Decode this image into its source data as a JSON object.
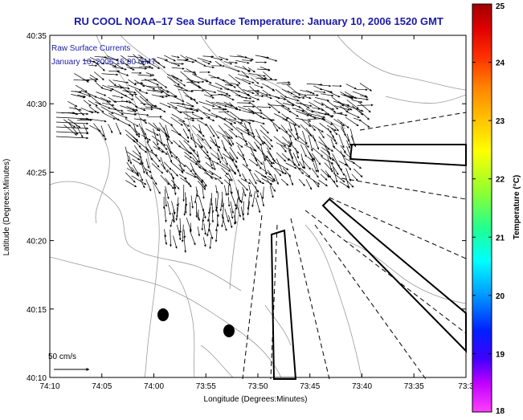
{
  "title": "RU COOL  NOAA–17  Sea Surface Temperature:  January 10, 2006 1520 GMT",
  "legend": {
    "line1": "Raw Surface Currents",
    "line2": "January 10, 2006 15:00 GMT"
  },
  "scale_label": "50 cm/s",
  "axes": {
    "xlabel": "Longitude (Degrees:Minutes)",
    "ylabel": "Latitude (Degrees:Minutes)",
    "xticks": [
      "74:10",
      "74:05",
      "74:00",
      "73:55",
      "73:50",
      "73:45",
      "73:40",
      "73:35",
      "73:3"
    ],
    "yticks": [
      "40:35",
      "40:30",
      "40:25",
      "40:20",
      "40:15",
      "40:10"
    ]
  },
  "colorbar": {
    "label": "Temperature (°C)",
    "ticks": [
      "25",
      "24",
      "23",
      "22",
      "21",
      "20",
      "19",
      "18"
    ],
    "min": 18,
    "max": 25
  },
  "colors": {
    "title": "#1a1aa6",
    "land": "#ffffff",
    "contours": "#9a9a9a",
    "vectors": "#000000"
  }
}
